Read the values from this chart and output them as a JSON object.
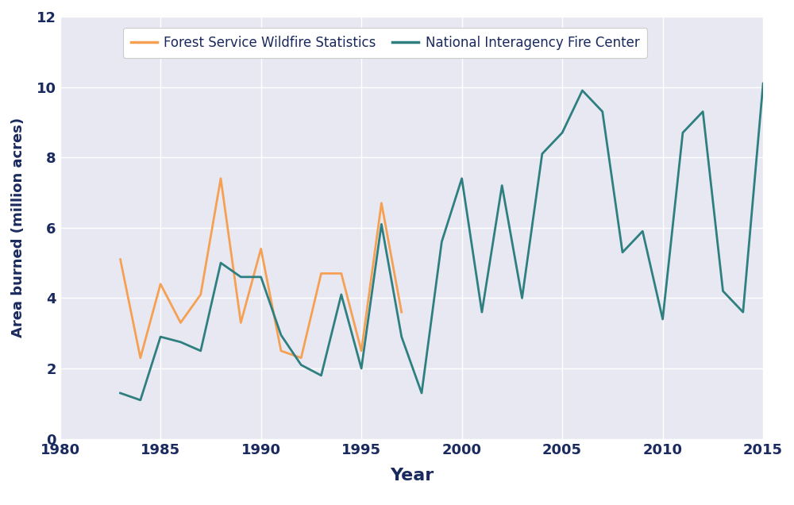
{
  "forest_service_years": [
    1983,
    1984,
    1985,
    1986,
    1987,
    1988,
    1989,
    1990,
    1991,
    1992,
    1993,
    1994,
    1995,
    1996,
    1997
  ],
  "forest_service_values": [
    5.1,
    2.3,
    4.4,
    3.3,
    4.1,
    7.4,
    3.3,
    5.4,
    2.5,
    2.3,
    4.7,
    4.7,
    2.5,
    6.7,
    3.6
  ],
  "nifc_years": [
    1983,
    1984,
    1985,
    1986,
    1987,
    1988,
    1989,
    1990,
    1991,
    1992,
    1993,
    1994,
    1995,
    1996,
    1997,
    1998,
    1999,
    2000,
    2001,
    2002,
    2003,
    2004,
    2005,
    2006,
    2007,
    2008,
    2009,
    2010,
    2011,
    2012,
    2013,
    2014,
    2015
  ],
  "nifc_values": [
    1.3,
    1.1,
    2.9,
    2.75,
    2.5,
    5.0,
    4.6,
    4.6,
    2.95,
    2.1,
    1.8,
    4.1,
    2.0,
    6.1,
    2.9,
    1.3,
    5.6,
    7.4,
    3.6,
    7.2,
    4.0,
    8.1,
    8.7,
    9.9,
    9.3,
    5.3,
    5.9,
    3.4,
    8.7,
    9.3,
    4.2,
    3.6,
    10.1
  ],
  "forest_service_color": "#f5a052",
  "nifc_color": "#2e7f7f",
  "figure_bg_color": "#ffffff",
  "plot_bg_color": "#e8e8f2",
  "title_color": "#1a2a5e",
  "axis_label_color": "#1a2a5e",
  "tick_color": "#1a2a5e",
  "grid_color": "#ffffff",
  "xlim": [
    1980,
    2015
  ],
  "ylim": [
    0,
    12
  ],
  "xticks": [
    1980,
    1985,
    1990,
    1995,
    2000,
    2005,
    2010,
    2015
  ],
  "yticks": [
    0,
    2,
    4,
    6,
    8,
    10,
    12
  ],
  "xlabel": "Year",
  "ylabel": "Area burned (million acres)",
  "legend_labels": [
    "Forest Service Wildfire Statistics",
    "National Interagency Fire Center"
  ],
  "xlabel_fontsize": 16,
  "ylabel_fontsize": 13,
  "tick_fontsize": 13,
  "legend_fontsize": 12,
  "line_width": 2.0
}
